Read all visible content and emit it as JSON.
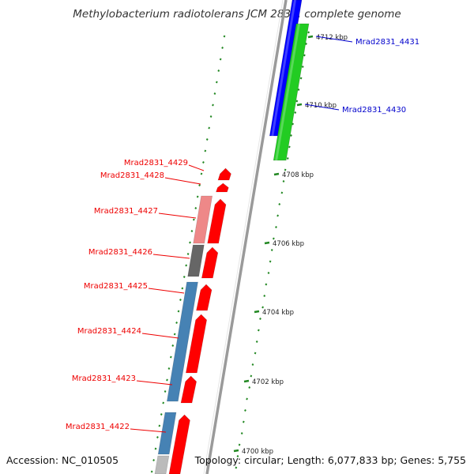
{
  "title": "Methylobacterium radiotolerans JCM 2831, complete genome",
  "footer": {
    "accession": "Accession: NC_010505",
    "topology": "Topology: circular; Length: 6,077,833 bp; Genes: 5,755"
  },
  "colors": {
    "forward_cds": "#0000ff",
    "forward_cds_alt": "#22cc22",
    "reverse_cds": "#ff0000",
    "cog_light_red": "#ee8888",
    "cog_gray": "#666666",
    "cog_steelblue": "#4682b4",
    "cog_lightgray": "#bbbbbb",
    "backbone": "#999999",
    "tick": "#228822",
    "label_forward": "#0000cc",
    "label_reverse": "#ee0000"
  },
  "scale_ticks": [
    {
      "label": "4712 kbp"
    },
    {
      "label": "4710 kbp"
    },
    {
      "label": "4708 kbp"
    },
    {
      "label": "4706 kbp"
    },
    {
      "label": "4704 kbp"
    },
    {
      "label": "4702 kbp"
    },
    {
      "label": "4700 kbp"
    }
  ],
  "genes_forward": [
    {
      "name": "Mrad2831_4431",
      "color": "#0000ff"
    },
    {
      "name": "Mrad2831_4430",
      "color": "#22cc22"
    }
  ],
  "genes_reverse": [
    {
      "name": "Mrad2831_4429"
    },
    {
      "name": "Mrad2831_4428"
    },
    {
      "name": "Mrad2831_4427"
    },
    {
      "name": "Mrad2831_4426"
    },
    {
      "name": "Mrad2831_4425"
    },
    {
      "name": "Mrad2831_4424"
    },
    {
      "name": "Mrad2831_4423"
    },
    {
      "name": "Mrad2831_4422"
    }
  ]
}
